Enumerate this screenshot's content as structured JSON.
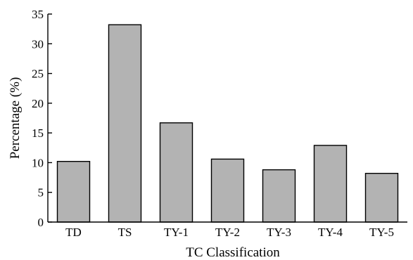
{
  "chart_data": {
    "type": "bar",
    "title": "",
    "xlabel": "TC Classification",
    "ylabel": "Percentage (%)",
    "categories": [
      "TD",
      "TS",
      "TY-1",
      "TY-2",
      "TY-3",
      "TY-4",
      "TY-5"
    ],
    "values": [
      10.2,
      33.2,
      16.7,
      10.6,
      8.8,
      12.9,
      8.2
    ],
    "ylim": [
      0,
      35
    ],
    "yticks": [
      0,
      5,
      10,
      15,
      20,
      25,
      30,
      35
    ],
    "grid": false,
    "bar_color": "#b3b3b3",
    "bar_edge_color": "#000000"
  }
}
